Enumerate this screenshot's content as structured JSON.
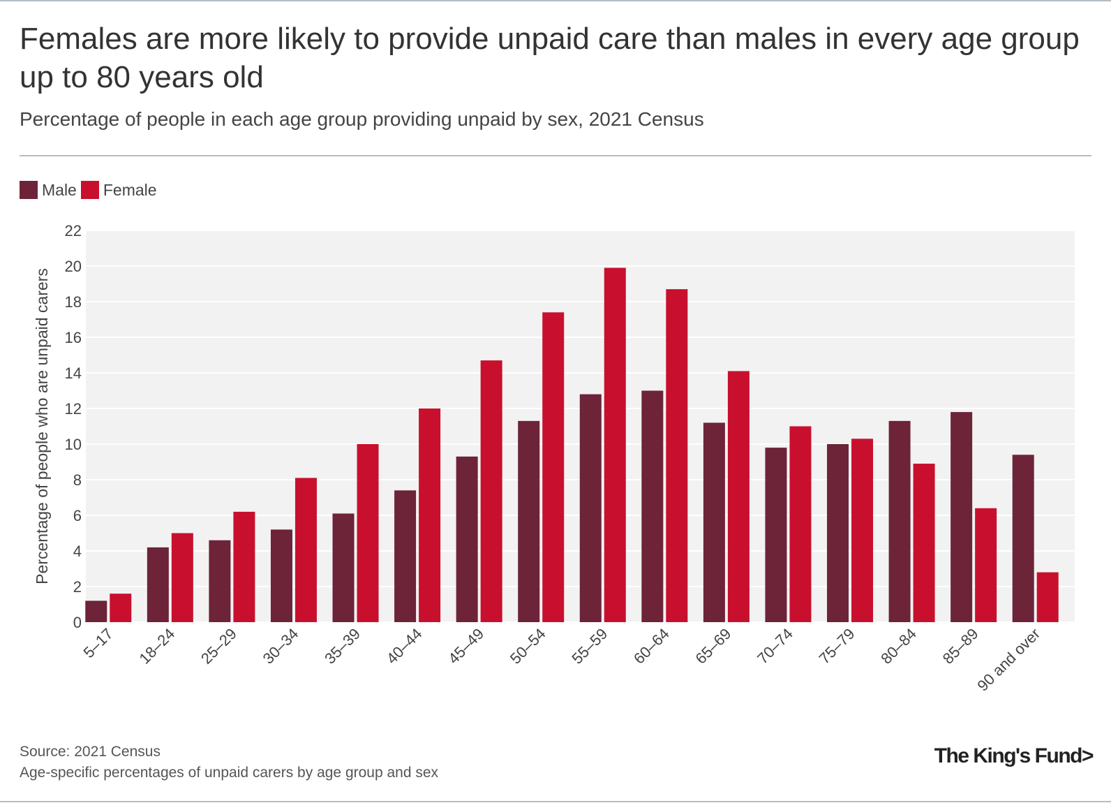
{
  "header": {
    "title": "Females are more likely to provide unpaid care than males in every age group up to 80 years old",
    "subtitle": "Percentage of people in each age group providing unpaid by sex, 2021 Census"
  },
  "legend": {
    "male": "Male",
    "female": "Female"
  },
  "colors": {
    "male": "#6d2338",
    "female": "#c8102e",
    "plot_background": "#f2f2f2",
    "gridline": "#ffffff"
  },
  "chart_data": {
    "type": "bar",
    "title": "Females are more likely to provide unpaid care than males in every age group up to 80 years old",
    "subtitle": "Percentage of people in each age group providing unpaid by sex, 2021 Census",
    "xlabel": "",
    "ylabel": "Percentage of people who are unpaid carers",
    "ylim": [
      0,
      22
    ],
    "yticks": [
      0,
      2,
      4,
      6,
      8,
      10,
      12,
      14,
      16,
      18,
      20,
      22
    ],
    "grid": true,
    "legend_position": "top-left",
    "categories": [
      "5–17",
      "18–24",
      "25–29",
      "30–34",
      "35–39",
      "40–44",
      "45–49",
      "50–54",
      "55–59",
      "60–64",
      "65–69",
      "70–74",
      "75–79",
      "80–84",
      "85–89",
      "90 and over"
    ],
    "series": [
      {
        "name": "Male",
        "values": [
          1.2,
          4.2,
          4.6,
          5.2,
          6.1,
          7.4,
          9.3,
          11.3,
          12.8,
          13.0,
          11.2,
          9.8,
          10.0,
          11.3,
          11.8,
          9.4
        ]
      },
      {
        "name": "Female",
        "values": [
          1.6,
          5.0,
          6.2,
          8.1,
          10.0,
          12.0,
          14.7,
          17.4,
          19.9,
          18.7,
          14.1,
          11.0,
          10.3,
          8.9,
          6.4,
          2.8
        ]
      }
    ]
  },
  "footer": {
    "source": "Source: 2021 Census",
    "note": "Age-specific percentages of unpaid carers by age group and sex",
    "brand": "The King's Fund>"
  }
}
